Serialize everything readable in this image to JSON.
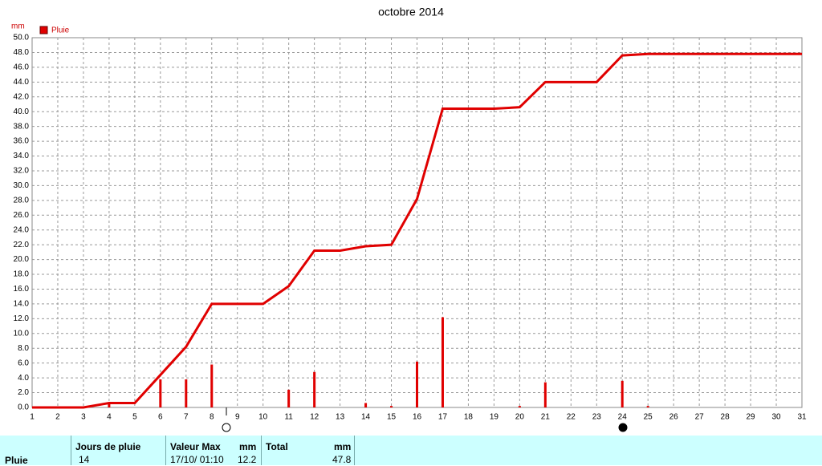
{
  "chart_data": {
    "type": "combo",
    "title": "octobre 2014",
    "ylabel": "mm",
    "xlim": [
      1,
      31
    ],
    "xticks": [
      1,
      2,
      3,
      4,
      5,
      6,
      7,
      8,
      9,
      10,
      11,
      12,
      13,
      14,
      15,
      16,
      17,
      18,
      19,
      20,
      21,
      22,
      23,
      24,
      25,
      26,
      27,
      28,
      29,
      30,
      31
    ],
    "ylim": [
      0,
      50
    ],
    "yticks": [
      {
        "value": 0,
        "label": "0.0"
      },
      {
        "value": 2,
        "label": "2.0"
      },
      {
        "value": 4,
        "label": "4.0"
      },
      {
        "value": 6,
        "label": "6.0"
      },
      {
        "value": 8,
        "label": "8.0"
      },
      {
        "value": 10,
        "label": "10.0"
      },
      {
        "value": 12,
        "label": "12.0"
      },
      {
        "value": 14,
        "label": "14.0"
      },
      {
        "value": 16,
        "label": "16.0"
      },
      {
        "value": 18,
        "label": "18.0"
      },
      {
        "value": 20,
        "label": "20.0"
      },
      {
        "value": 22,
        "label": "22.0"
      },
      {
        "value": 24,
        "label": "24.0"
      },
      {
        "value": 26,
        "label": "26.0"
      },
      {
        "value": 28,
        "label": "28.0"
      },
      {
        "value": 30,
        "label": "30.0"
      },
      {
        "value": 32,
        "label": "32.0"
      },
      {
        "value": 34,
        "label": "34.0"
      },
      {
        "value": 36,
        "label": "36.0"
      },
      {
        "value": 38,
        "label": "38.0"
      },
      {
        "value": 40,
        "label": "40.0"
      },
      {
        "value": 42,
        "label": "42.0"
      },
      {
        "value": 44,
        "label": "44.0"
      },
      {
        "value": 46,
        "label": "46.0"
      },
      {
        "value": 48,
        "label": "48.0"
      },
      {
        "value": 50,
        "label": "50.0"
      }
    ],
    "grid": true,
    "series": [
      {
        "name": "Pluie",
        "type": "bar",
        "color": "#e00000",
        "x": [
          4,
          6,
          7,
          8,
          11,
          12,
          14,
          15,
          16,
          17,
          20,
          21,
          24,
          25
        ],
        "values": [
          0.6,
          3.8,
          3.8,
          5.8,
          2.4,
          4.8,
          0.6,
          0.2,
          6.2,
          12.2,
          0.2,
          3.4,
          3.6,
          0.2
        ]
      },
      {
        "type": "line",
        "color": "#e00000",
        "x": [
          1,
          2,
          3,
          4,
          5,
          6,
          7,
          8,
          9,
          10,
          11,
          12,
          13,
          14,
          15,
          16,
          17,
          18,
          19,
          20,
          21,
          22,
          23,
          24,
          25,
          26,
          27,
          28,
          29,
          30,
          31
        ],
        "values": [
          0,
          0,
          0,
          0.6,
          0.6,
          4.4,
          8.2,
          14.0,
          14.0,
          14.0,
          16.4,
          21.2,
          21.2,
          21.8,
          22.0,
          28.2,
          40.4,
          40.4,
          40.4,
          40.6,
          44.0,
          44.0,
          44.0,
          47.6,
          47.8,
          47.8,
          47.8,
          47.8,
          47.8,
          47.8,
          47.8
        ]
      }
    ]
  },
  "table": {
    "row_label": "Pluie",
    "headers": [
      "Jours de pluie",
      "Valeur Max",
      "mm",
      "Total",
      "mm"
    ],
    "values": [
      "14",
      "17/10/ 01:10",
      "12.2",
      "47.8"
    ]
  }
}
